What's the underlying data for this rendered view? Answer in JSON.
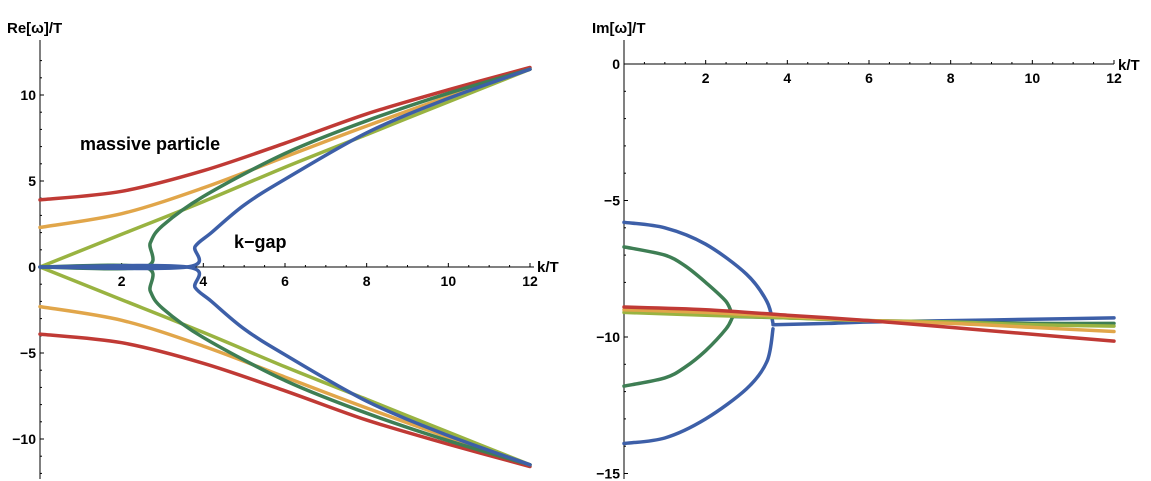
{
  "colors": {
    "blue": "#3d5fa8",
    "green": "#3e7e54",
    "lime": "#99b341",
    "orange": "#e1a64a",
    "red": "#c03a35"
  },
  "chart_data": [
    {
      "type": "line",
      "ylabel": "Re[ω]/T",
      "xlabel": "k/T",
      "xlim": [
        0,
        12
      ],
      "ylim": [
        -12,
        12
      ],
      "xticks": [
        "2",
        "4",
        "6",
        "8",
        "10",
        "12"
      ],
      "yticks": [
        "10",
        "5",
        "0",
        "−5",
        "−10"
      ],
      "annotations": [
        "massive particle",
        "k−gap"
      ],
      "series": [
        {
          "color_key": "red",
          "x": [
            0,
            2,
            4,
            6,
            8,
            10,
            12
          ],
          "y": [
            3.9,
            4.4,
            5.6,
            7.2,
            8.9,
            10.3,
            11.6
          ],
          "mirror": true
        },
        {
          "color_key": "orange",
          "x": [
            0,
            2,
            4,
            6,
            8,
            10,
            12
          ],
          "y": [
            2.3,
            3.1,
            4.6,
            6.4,
            8.2,
            9.9,
            11.5
          ],
          "mirror": true
        },
        {
          "color_key": "lime",
          "x": [
            0,
            2,
            4,
            6,
            8,
            10,
            12
          ],
          "y": [
            0,
            1.9,
            3.8,
            5.8,
            7.7,
            9.6,
            11.5
          ],
          "mirror": true
        },
        {
          "color_key": "green",
          "x": [
            0,
            2.55,
            2.7,
            3,
            4,
            6,
            8,
            10,
            12
          ],
          "y": [
            0,
            0,
            1.4,
            2.4,
            4.1,
            6.6,
            8.5,
            10.1,
            11.5
          ],
          "mirror": true
        },
        {
          "color_key": "blue",
          "x": [
            0,
            3.6,
            3.8,
            4.2,
            5,
            6,
            8,
            10,
            12
          ],
          "y": [
            0,
            0,
            1.2,
            2.0,
            3.6,
            5.1,
            7.8,
            9.8,
            11.5
          ],
          "mirror": true
        }
      ]
    },
    {
      "type": "line",
      "ylabel": "Im[ω]/T",
      "xlabel": "k/T",
      "xlim": [
        0,
        12
      ],
      "ylim": [
        -15,
        0.6
      ],
      "xticks": [
        "2",
        "4",
        "6",
        "8",
        "10",
        "12"
      ],
      "yticks": [
        "0",
        "−5",
        "−10",
        "−15"
      ],
      "series": [
        {
          "color_key": "blue",
          "x": [
            0,
            1,
            2,
            3,
            3.5,
            3.65
          ],
          "y": [
            -5.8,
            -6.0,
            -6.6,
            -7.7,
            -8.7,
            -9.5
          ]
        },
        {
          "color_key": "blue",
          "x": [
            0,
            1,
            2,
            3,
            3.5,
            3.65
          ],
          "y": [
            -13.9,
            -13.7,
            -13.0,
            -11.9,
            -10.9,
            -9.7
          ]
        },
        {
          "color_key": "blue",
          "x": [
            3.65,
            5,
            6,
            8,
            10,
            12
          ],
          "y": [
            -9.55,
            -9.5,
            -9.45,
            -9.4,
            -9.35,
            -9.3
          ]
        },
        {
          "color_key": "green",
          "x": [
            0,
            1,
            1.5,
            2,
            2.5,
            2.65
          ],
          "y": [
            -6.7,
            -7.0,
            -7.4,
            -8.0,
            -8.7,
            -9.2
          ]
        },
        {
          "color_key": "green",
          "x": [
            0,
            1,
            1.5,
            2,
            2.5,
            2.65
          ],
          "y": [
            -11.8,
            -11.5,
            -11.1,
            -10.5,
            -9.7,
            -9.3
          ]
        },
        {
          "color_key": "green",
          "x": [
            2.65,
            4,
            6,
            8,
            10,
            12
          ],
          "y": [
            -9.25,
            -9.3,
            -9.4,
            -9.45,
            -9.5,
            -9.5
          ]
        },
        {
          "color_key": "lime",
          "x": [
            0,
            2,
            4,
            6,
            8,
            10,
            12
          ],
          "y": [
            -9.1,
            -9.2,
            -9.3,
            -9.4,
            -9.45,
            -9.55,
            -9.6
          ]
        },
        {
          "color_key": "orange",
          "x": [
            0,
            2,
            4,
            6,
            8,
            10,
            12
          ],
          "y": [
            -9.0,
            -9.1,
            -9.25,
            -9.4,
            -9.5,
            -9.65,
            -9.8
          ]
        },
        {
          "color_key": "red",
          "x": [
            0,
            2,
            4,
            6,
            8,
            10,
            12
          ],
          "y": [
            -8.9,
            -9.0,
            -9.2,
            -9.4,
            -9.65,
            -9.9,
            -10.15
          ]
        }
      ]
    }
  ]
}
